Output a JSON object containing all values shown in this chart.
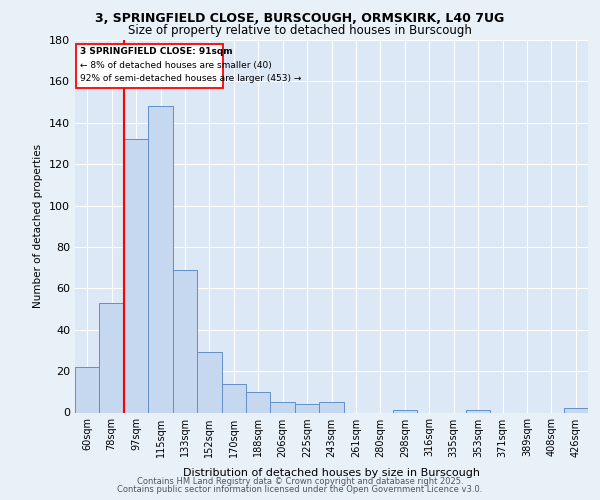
{
  "title_line1": "3, SPRINGFIELD CLOSE, BURSCOUGH, ORMSKIRK, L40 7UG",
  "title_line2": "Size of property relative to detached houses in Burscough",
  "xlabel": "Distribution of detached houses by size in Burscough",
  "ylabel": "Number of detached properties",
  "categories": [
    "60sqm",
    "78sqm",
    "97sqm",
    "115sqm",
    "133sqm",
    "152sqm",
    "170sqm",
    "188sqm",
    "206sqm",
    "225sqm",
    "243sqm",
    "261sqm",
    "280sqm",
    "298sqm",
    "316sqm",
    "335sqm",
    "353sqm",
    "371sqm",
    "389sqm",
    "408sqm",
    "426sqm"
  ],
  "values": [
    22,
    53,
    132,
    148,
    69,
    29,
    14,
    10,
    5,
    4,
    5,
    0,
    0,
    1,
    0,
    0,
    1,
    0,
    0,
    0,
    2
  ],
  "bar_color": "#c5d8f0",
  "bar_edge_color": "#6090c8",
  "redline_x": 1.5,
  "annotation_text_line1": "3 SPRINGFIELD CLOSE: 91sqm",
  "annotation_text_line2": "← 8% of detached houses are smaller (40)",
  "annotation_text_line3": "92% of semi-detached houses are larger (453) →",
  "background_color": "#e8f0f8",
  "plot_bg_color": "#dce8f5",
  "footer_line1": "Contains HM Land Registry data © Crown copyright and database right 2025.",
  "footer_line2": "Contains public sector information licensed under the Open Government Licence v3.0.",
  "ylim": [
    0,
    180
  ],
  "figsize": [
    6.0,
    5.0
  ],
  "dpi": 100
}
